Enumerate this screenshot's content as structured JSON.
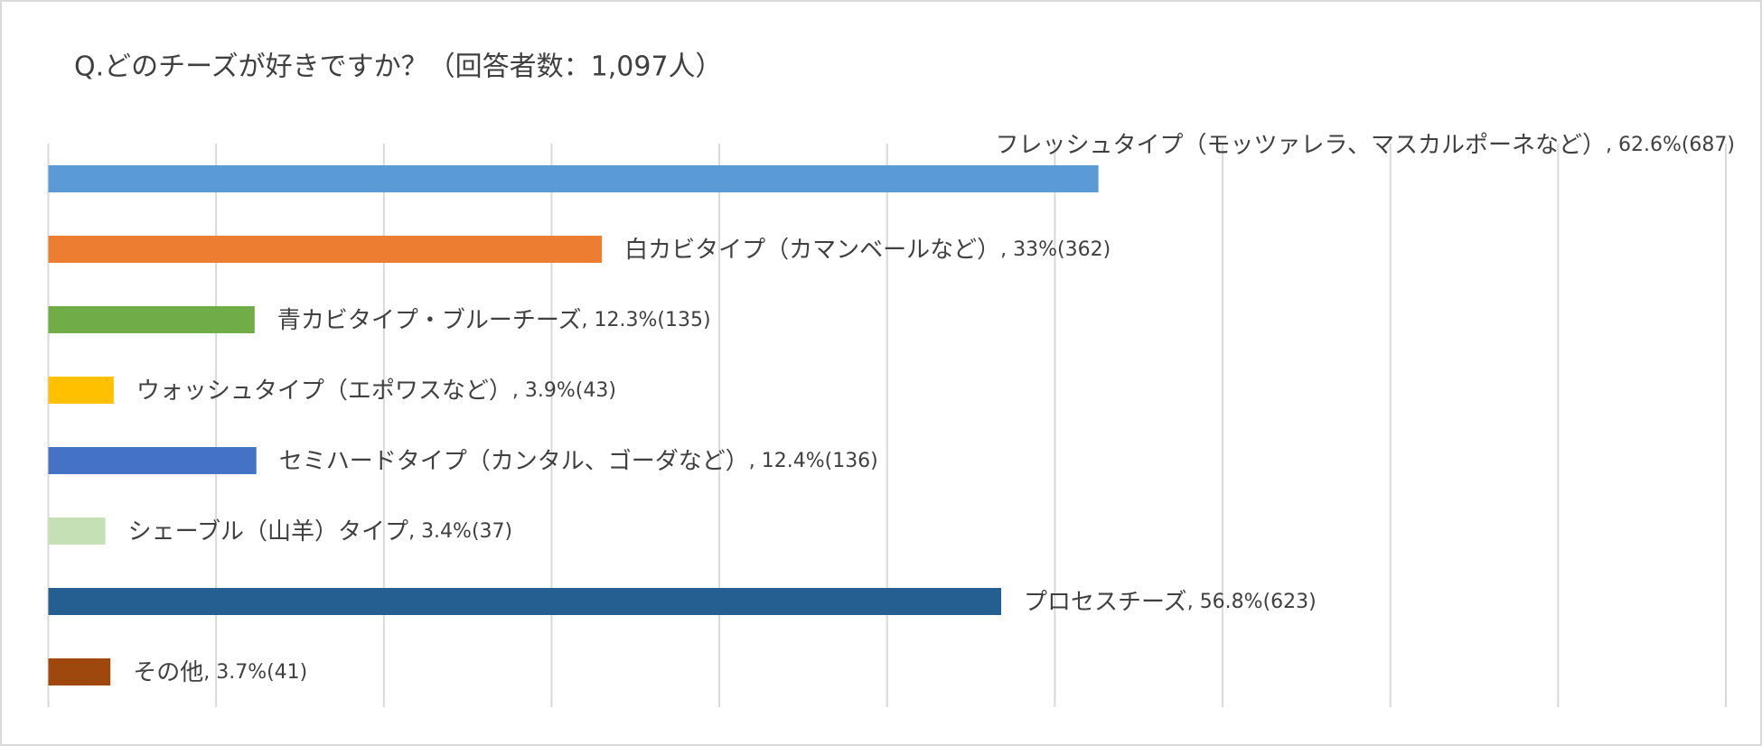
{
  "chart_data": {
    "type": "barh",
    "title": "Q.どのチーズが好きですか？（回答者数：1,097人）",
    "categories": [
      "フレッシュタイプ（モッツァレラ、マスカルポーネなど）",
      "白カビタイプ（カマンベールなど）",
      "青カビタイプ・ブルーチーズ",
      "ウォッシュタイプ（エポワスなど）",
      "セミハードタイプ（カンタル、ゴーダなど）",
      "シェーブル（山羊）タイプ",
      "プロセスチーズ",
      "その他"
    ],
    "values": [
      62.6,
      33,
      12.3,
      3.9,
      12.4,
      3.4,
      56.8,
      3.7
    ],
    "value_labels": [
      "62.6%(687)",
      "33%(362)",
      "12.3%(135)",
      "3.9%(43)",
      "12.4%(136)",
      "3.4%(37)",
      "56.8%(623)",
      "3.7%(41)"
    ],
    "colors": [
      "#5b9bd5",
      "#ed7d31",
      "#70ad47",
      "#ffc000",
      "#4472c4",
      "#c5e0b4",
      "#255e91",
      "#9e480e"
    ],
    "xlim": [
      0,
      100
    ],
    "xticks": [
      0,
      10,
      20,
      30,
      40,
      50,
      60,
      70,
      80,
      90,
      100
    ],
    "grid": true
  }
}
